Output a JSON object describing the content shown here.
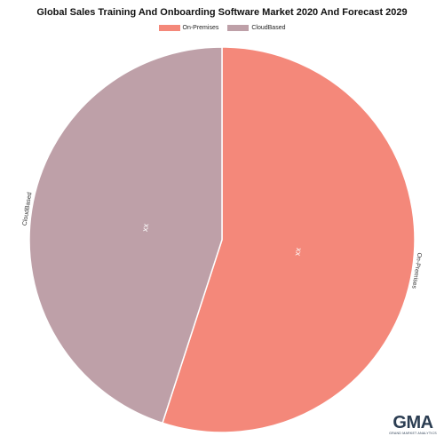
{
  "chart_data": {
    "type": "pie",
    "title": "Global Sales Training And Onboarding Software Market 2020 And Forecast 2029",
    "legend_position": "top",
    "slices": [
      {
        "name": "On-Premises",
        "value": 55,
        "data_label": "xx",
        "color": "#f4887a"
      },
      {
        "name": "CloudBased",
        "value": 45,
        "data_label": "xx",
        "color": "#bea0a8"
      }
    ]
  },
  "logo": {
    "mark": "GMA",
    "subtitle": "GRAND MARKET ANALYTICS"
  }
}
